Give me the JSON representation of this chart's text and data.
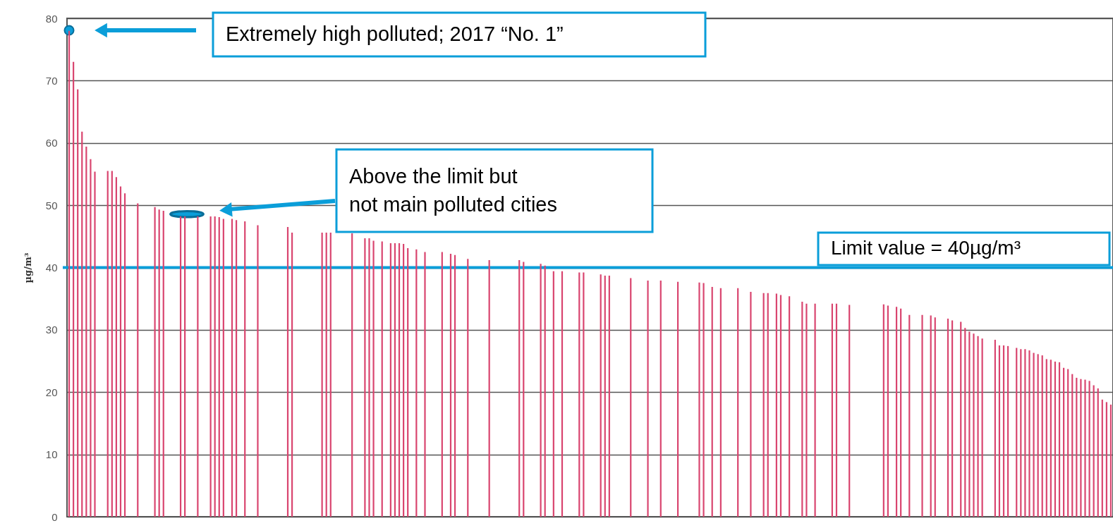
{
  "chart_data": {
    "type": "bar",
    "ylabel": "µg/m³",
    "ylim": [
      0,
      80
    ],
    "yticks": [
      0,
      10,
      20,
      30,
      40,
      50,
      60,
      70,
      80
    ],
    "grid": "y",
    "categories": [
      null,
      null,
      null,
      null,
      null,
      null,
      null,
      null,
      null,
      null,
      null,
      null,
      null,
      null,
      null,
      null,
      null,
      null,
      null,
      null,
      null,
      null,
      null,
      null,
      null,
      null,
      null,
      null,
      null,
      null,
      null,
      null,
      null,
      null,
      null,
      null,
      null,
      null,
      null,
      null,
      null,
      null,
      null,
      null,
      null,
      null,
      null,
      null,
      null,
      null,
      null,
      null,
      null,
      null,
      null,
      null,
      null,
      null,
      null,
      null,
      null,
      null,
      null,
      null,
      null,
      null,
      null,
      null,
      null,
      null,
      null,
      null,
      null,
      null,
      null,
      null,
      null,
      null,
      null,
      null,
      null,
      null,
      null,
      null,
      null,
      null,
      null,
      null,
      null,
      null,
      null,
      null,
      null,
      null,
      null,
      null,
      null,
      null,
      null,
      null,
      null,
      null,
      null,
      null,
      null,
      null,
      null,
      null,
      null,
      null,
      null,
      null,
      null,
      null,
      null,
      null,
      null,
      null,
      null,
      null,
      null,
      null,
      null,
      null,
      null,
      null,
      null,
      null,
      null,
      null,
      null,
      null,
      null,
      null,
      null,
      null,
      null,
      null,
      null,
      null,
      null,
      null,
      null,
      null,
      null,
      null,
      null,
      null,
      null,
      null,
      null,
      null,
      null,
      null,
      null,
      null,
      null,
      null,
      null,
      null,
      null,
      null,
      null,
      null,
      null,
      null,
      null,
      null,
      null,
      null,
      null,
      null,
      null,
      null,
      null,
      null,
      null,
      null,
      null,
      null,
      null,
      null,
      null,
      null,
      null,
      null,
      null,
      null,
      null,
      null,
      null,
      null,
      null,
      null,
      null,
      null,
      null,
      null,
      null,
      null,
      null,
      null,
      null,
      null,
      null,
      null,
      null,
      null,
      null,
      null,
      null,
      null,
      null,
      null,
      null,
      null,
      null,
      null,
      null,
      null,
      null,
      null,
      null,
      null,
      null,
      null,
      null,
      null,
      null,
      null,
      null,
      null,
      null,
      null,
      null,
      null,
      null,
      null,
      null,
      null,
      null,
      null,
      null,
      null
    ],
    "color": "#d9456f",
    "values": [
      78,
      73,
      68.6,
      61.8,
      59.4,
      57.4,
      55.4,
      null,
      null,
      55.5,
      55.5,
      54.5,
      53,
      51.9,
      null,
      null,
      50.3,
      null,
      null,
      null,
      49.7,
      49.3,
      49.1,
      null,
      null,
      null,
      48.2,
      48.2,
      null,
      null,
      48.2,
      null,
      null,
      48.2,
      48.2,
      48.1,
      47.8,
      null,
      47.8,
      47.6,
      null,
      47.4,
      null,
      null,
      46.8,
      null,
      null,
      null,
      null,
      null,
      null,
      46.5,
      45.6,
      null,
      null,
      null,
      null,
      null,
      null,
      45.6,
      45.6,
      45.6,
      null,
      null,
      null,
      null,
      45.5,
      null,
      null,
      44.7,
      44.7,
      44.3,
      null,
      44.2,
      null,
      43.9,
      43.9,
      43.9,
      43.8,
      43.1,
      null,
      42.9,
      null,
      42.5,
      null,
      null,
      null,
      42.5,
      null,
      42.2,
      42,
      null,
      null,
      41.4,
      null,
      null,
      null,
      null,
      41.2,
      null,
      null,
      null,
      null,
      null,
      null,
      41.2,
      40.9,
      null,
      null,
      null,
      40.6,
      40.3,
      null,
      39.4,
      null,
      39.4,
      null,
      null,
      null,
      39.2,
      39.2,
      null,
      null,
      null,
      38.9,
      38.7,
      38.7,
      null,
      null,
      null,
      null,
      38.3,
      null,
      null,
      null,
      37.9,
      null,
      null,
      37.9,
      null,
      null,
      null,
      37.7,
      null,
      null,
      null,
      null,
      37.6,
      37.5,
      null,
      36.9,
      null,
      36.7,
      null,
      null,
      null,
      36.7,
      null,
      null,
      36.1,
      null,
      null,
      35.9,
      35.9,
      null,
      35.8,
      35.6,
      null,
      35.4,
      null,
      null,
      34.5,
      34.2,
      null,
      34.2,
      null,
      null,
      null,
      34.2,
      34.2,
      null,
      null,
      34.0,
      null,
      null,
      null,
      null,
      null,
      null,
      null,
      34.1,
      33.9,
      null,
      33.7,
      33.4,
      null,
      32.4,
      null,
      null,
      32.4,
      null,
      32.3,
      32.0,
      null,
      null,
      31.8,
      31.5,
      null,
      31.3,
      30.3,
      29.7,
      29.4,
      29.0,
      28.6,
      null,
      null,
      28.4,
      27.5,
      27.5,
      27.4,
      null,
      27.1,
      26.9,
      26.9,
      26.7,
      26.3,
      26.1,
      25.9,
      25.3,
      25.2,
      24.9,
      24.8,
      23.9,
      23.7,
      22.9,
      22.3,
      22.1,
      22.0,
      21.8,
      21.1,
      20.6,
      18.8,
      18.4,
      18.0
    ],
    "ref_lines": [
      {
        "axis": "y",
        "value": 40,
        "label": "Limit value = 40µg/m³",
        "color": "#0b9ed9"
      }
    ],
    "annotations": [
      "Extremely high polluted; 2017 “No. 1”",
      "Above the limit but not main polluted cities"
    ]
  }
}
